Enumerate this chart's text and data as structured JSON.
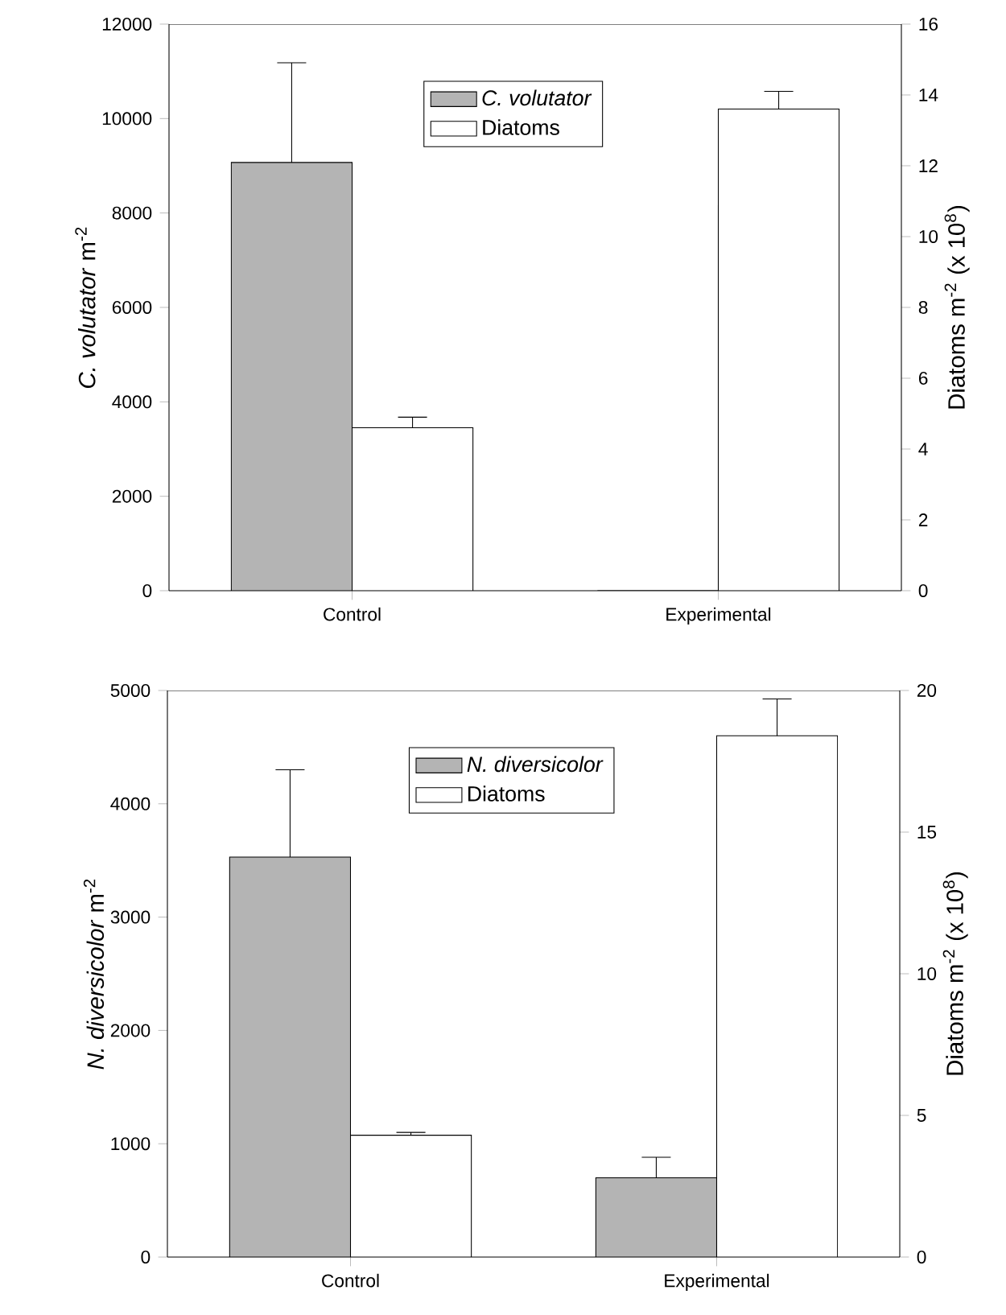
{
  "chart_data": [
    {
      "type": "bar",
      "categories": [
        "Control",
        "Experimental"
      ],
      "ylabel": "*C. volutator* m$^{-2}$",
      "y2label": "Diatoms m$^{-2}$ (x 10$^{8}$)",
      "series": [
        {
          "name": "*C. volutator*",
          "color": "#b4b4b4",
          "values": [
            9070,
            0
          ],
          "errors": [
            [
              9070,
              11180
            ],
            null
          ]
        },
        {
          "name": "Diatoms",
          "color": "#ffffff",
          "axis": "y2",
          "values": [
            4.6,
            13.6
          ],
          "errors": [
            [
              4.6,
              4.9
            ],
            [
              13.6,
              14.1
            ]
          ]
        }
      ],
      "ylim": [
        0,
        12000
      ],
      "yticks": [
        0,
        2000,
        4000,
        6000,
        8000,
        10000,
        12000
      ],
      "y2lim": [
        0,
        16
      ],
      "y2ticks": [
        0,
        2,
        4,
        6,
        8,
        10,
        12,
        14,
        16
      ],
      "legend": "top",
      "grid": false
    },
    {
      "type": "bar",
      "categories": [
        "Control",
        "Experimental"
      ],
      "ylabel": "*N. diversicolor* m$^{-2}$",
      "y2label": "Diatoms m$^{-2}$ (x 10$^{8}$)",
      "series": [
        {
          "name": "*N. diversicolor*",
          "color": "#b4b4b4",
          "values": [
            3530,
            700
          ],
          "errors": [
            [
              3530,
              4300
            ],
            [
              700,
              880
            ]
          ]
        },
        {
          "name": "Diatoms",
          "color": "#ffffff",
          "axis": "y2",
          "values": [
            4.3,
            18.4
          ],
          "errors": [
            [
              4.3,
              4.4
            ],
            [
              18.4,
              19.7
            ]
          ]
        }
      ],
      "ylim": [
        0,
        5000
      ],
      "yticks": [
        0,
        1000,
        2000,
        3000,
        4000,
        5000
      ],
      "y2lim": [
        0,
        20
      ],
      "y2ticks": [
        0,
        5,
        10,
        15,
        20
      ],
      "legend": "top",
      "grid": false
    }
  ]
}
